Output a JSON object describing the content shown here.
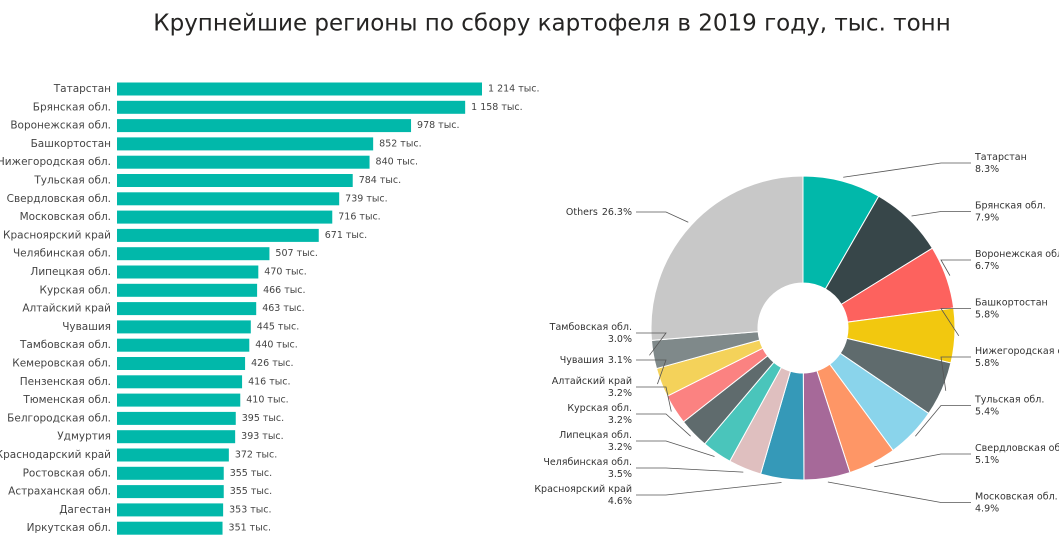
{
  "chart_data": [
    {
      "type": "hbar",
      "title": "Крупнейшие регионы по сбору картофеля в 2019 году, тыс. тонн",
      "categories": [
        "Татарстан",
        "Брянская обл.",
        "Воронежская обл.",
        "Башкортостан",
        "Нижегородская обл.",
        "Тульская обл.",
        "Свердловская обл.",
        "Московская обл.",
        "Красноярский край",
        "Челябинская обл.",
        "Липецкая обл.",
        "Курская обл.",
        "Алтайский край",
        "Чувашия",
        "Тамбовская обл.",
        "Кемеровская обл.",
        "Пензенская обл.",
        "Тюменская обл.",
        "Белгородская обл.",
        "Удмуртия",
        "Краснодарский край",
        "Ростовская обл.",
        "Астраханская обл.",
        "Дагестан",
        "Иркутская обл."
      ],
      "values": [
        1214,
        1158,
        978,
        852,
        840,
        784,
        739,
        716,
        671,
        507,
        470,
        466,
        463,
        445,
        440,
        426,
        416,
        410,
        395,
        393,
        372,
        355,
        355,
        353,
        351
      ],
      "value_labels": [
        "1 214 тыс.",
        "1 158 тыс.",
        "978 тыс.",
        "852 тыс.",
        "840 тыс.",
        "784 тыс.",
        "739 тыс.",
        "716 тыс.",
        "671 тыс.",
        "507 тыс.",
        "470 тыс.",
        "466 тыс.",
        "463 тыс.",
        "445 тыс.",
        "440 тыс.",
        "426 тыс.",
        "416 тыс.",
        "410 тыс.",
        "395 тыс.",
        "393 тыс.",
        "372 тыс.",
        "355 тыс.",
        "355 тыс.",
        "353 тыс.",
        "351 тыс."
      ],
      "color": "#01b8aa"
    },
    {
      "type": "donut",
      "categories": [
        "Татарстан",
        "Брянская обл.",
        "Воронежская обл.",
        "Башкортостан",
        "Нижегородская обл.",
        "Тульская обл.",
        "Свердловская обл.",
        "Московская обл.",
        "Красноярский край",
        "Челябинская обл.",
        "Липецкая обл.",
        "Курская обл.",
        "Алтайский край",
        "Чувашия",
        "Тамбовская обл.",
        "Others"
      ],
      "values": [
        8.3,
        7.9,
        6.7,
        5.8,
        5.8,
        5.4,
        5.1,
        4.9,
        4.6,
        3.5,
        3.2,
        3.2,
        3.2,
        3.1,
        3.0,
        26.3
      ],
      "value_labels": [
        "8.3%",
        "7.9%",
        "6.7%",
        "5.8%",
        "5.8%",
        "5.4%",
        "5.1%",
        "4.9%",
        "4.6%",
        "3.5%",
        "3.2%",
        "3.2%",
        "3.2%",
        "3.1%",
        "3.0%",
        "26.3%"
      ],
      "colors": [
        "#01b8aa",
        "#374649",
        "#fd625e",
        "#f2c80f",
        "#5f6b6d",
        "#8ad4eb",
        "#fe9666",
        "#a66999",
        "#3599b8",
        "#dfbfbf",
        "#4ac5bb",
        "#5f6b6d",
        "#fb8281",
        "#f4d25a",
        "#7f898a",
        "#c8c8c8"
      ]
    }
  ]
}
